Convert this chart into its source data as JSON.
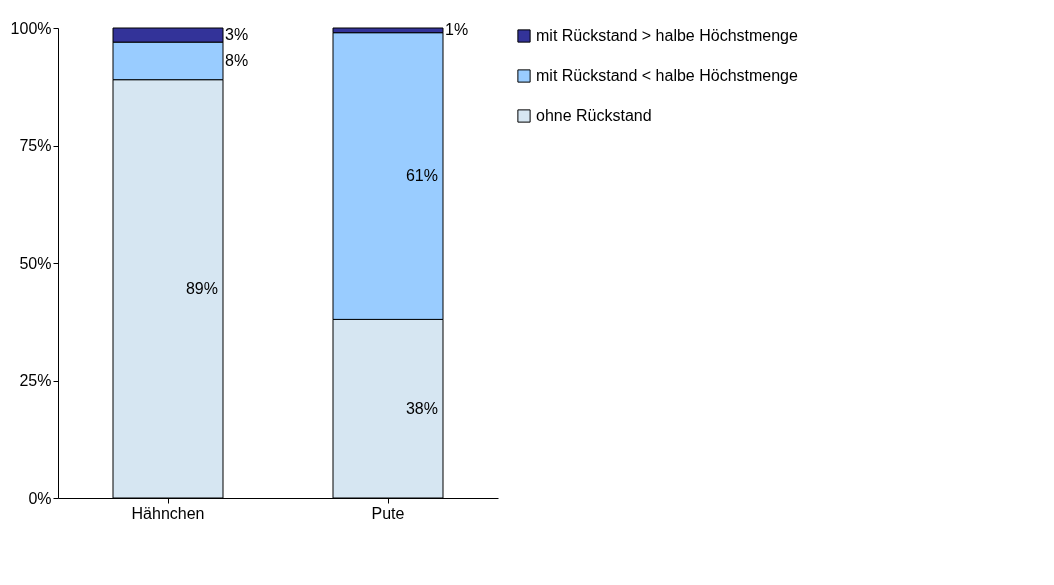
{
  "chart_data": {
    "type": "bar",
    "stacked": true,
    "categories": [
      "Hähnchen",
      "Pute"
    ],
    "series": [
      {
        "name": "ohne Rückstand",
        "color": "#d6e6f2",
        "values": [
          89,
          38
        ],
        "value_labels": [
          "89%",
          "38%"
        ]
      },
      {
        "name": "mit Rückstand < halbe Höchstmenge",
        "color": "#99ccff",
        "values": [
          8,
          61
        ],
        "value_labels": [
          "8%",
          "61%"
        ]
      },
      {
        "name": "mit Rückstand > halbe Höchstmenge",
        "color": "#333399",
        "values": [
          3,
          1
        ],
        "value_labels": [
          "3%",
          "1%"
        ]
      }
    ],
    "ylim": [
      0,
      100
    ],
    "yticks": [
      {
        "value": 0,
        "label": "0%"
      },
      {
        "value": 25,
        "label": "25%"
      },
      {
        "value": 50,
        "label": "50%"
      },
      {
        "value": 75,
        "label": "75%"
      },
      {
        "value": 100,
        "label": "100%"
      }
    ],
    "legend": "right",
    "grid": false
  }
}
